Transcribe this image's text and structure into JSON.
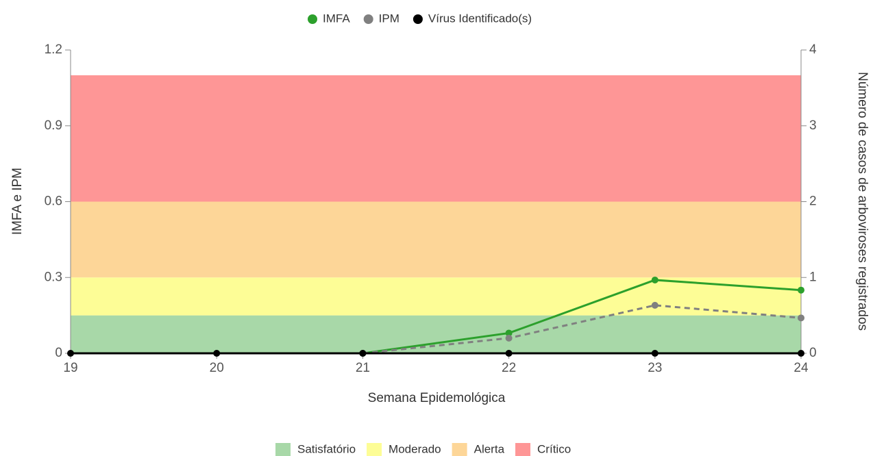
{
  "chart_data": {
    "type": "line",
    "x_label": "Semana Epidemológica",
    "y_label": "IMFA e IPM",
    "y2_label": "Número de casos de arboviroses registrados",
    "x": [
      19,
      20,
      21,
      22,
      23,
      24
    ],
    "xlim": [
      19,
      24
    ],
    "xticks": [
      19,
      20,
      21,
      22,
      23,
      24
    ],
    "ylim": [
      0,
      1.2
    ],
    "yticks": [
      0,
      0.3,
      0.6,
      0.9,
      1.2
    ],
    "y2lim": [
      0,
      4
    ],
    "y2ticks": [
      0,
      1,
      2,
      3,
      4
    ],
    "series": [
      {
        "name": "IMFA",
        "color": "#2ca02c",
        "dash": false,
        "values": [
          null,
          null,
          0,
          0.08,
          0.29,
          0.25
        ]
      },
      {
        "name": "IPM",
        "color": "#808080",
        "dash": true,
        "values": [
          null,
          null,
          0,
          0.06,
          0.19,
          0.14
        ]
      },
      {
        "name": "Vírus Identificado(s)",
        "color": "#000000",
        "dash": false,
        "axis": "y2",
        "values": [
          0,
          0,
          0,
          0,
          0,
          0
        ]
      }
    ],
    "bands": [
      {
        "name": "Satisfatório",
        "color": "#a8d8a8",
        "from": 0,
        "to": 0.15
      },
      {
        "name": "Moderado",
        "color": "#fdfd96",
        "from": 0.15,
        "to": 0.3
      },
      {
        "name": "Alerta",
        "color": "#fdd698",
        "from": 0.3,
        "to": 0.6
      },
      {
        "name": "Crítico",
        "color": "#fe9696",
        "from": 0.6,
        "to": 1.1
      }
    ]
  }
}
